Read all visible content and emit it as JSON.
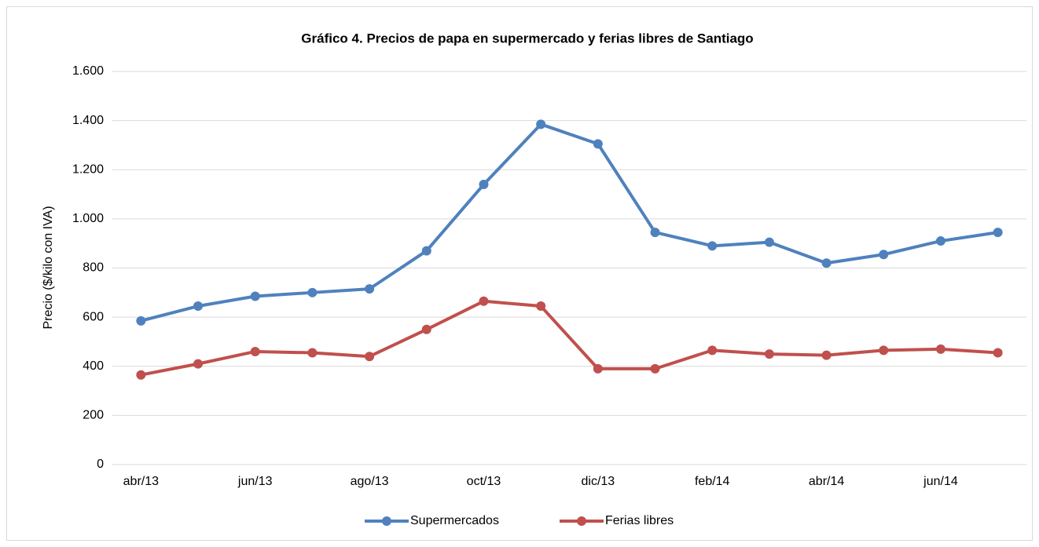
{
  "chart_data": {
    "type": "line",
    "title": "Gráfico 4. Precios de papa en supermercado y ferias libres de Santiago",
    "y_label": "Precio ($/kilo con IVA)",
    "categories": [
      "abr/13",
      null,
      "jun/13",
      null,
      "ago/13",
      null,
      "oct/13",
      null,
      "dic/13",
      null,
      "feb/14",
      null,
      "abr/14",
      null,
      "jun/14",
      null
    ],
    "series": [
      {
        "name": "Supermercados",
        "color": "#4f81bd",
        "values": [
          585,
          645,
          685,
          700,
          715,
          870,
          1140,
          1385,
          1305,
          945,
          890,
          905,
          820,
          855,
          910,
          945
        ]
      },
      {
        "name": "Ferias libres",
        "color": "#c0504d",
        "values": [
          365,
          410,
          460,
          455,
          440,
          550,
          665,
          645,
          390,
          390,
          465,
          450,
          445,
          465,
          470,
          455
        ]
      }
    ],
    "ylim": [
      0,
      1600
    ],
    "yticks": [
      0,
      200,
      400,
      600,
      800,
      {
        "value": 1000,
        "label": "1.000"
      },
      {
        "value": 1200,
        "label": "1.200"
      },
      {
        "value": 1400,
        "label": "1.400"
      },
      {
        "value": 1600,
        "label": "1.600"
      }
    ],
    "grid": true,
    "legend": "bottom"
  }
}
